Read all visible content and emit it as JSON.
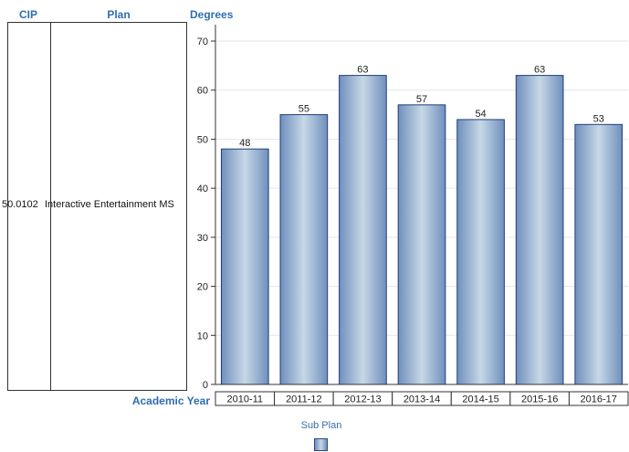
{
  "headers": {
    "cip": "CIP",
    "plan": "Plan",
    "degrees": "Degrees"
  },
  "row": {
    "cip": "50.0102",
    "plan": "Interactive Entertainment MS"
  },
  "chart_data": {
    "type": "bar",
    "categories": [
      "2010-11",
      "2011-12",
      "2012-13",
      "2013-14",
      "2014-15",
      "2015-16",
      "2016-17"
    ],
    "values": [
      48,
      55,
      63,
      57,
      54,
      63,
      53
    ],
    "xlabel": "Academic Year",
    "ylabel": "Degrees",
    "ylim": [
      0,
      70
    ],
    "yticks": [
      0,
      10,
      20,
      30,
      40,
      50,
      60,
      70
    ],
    "legend": {
      "title": "Sub Plan",
      "placement": "bottom"
    },
    "colors": {
      "bar_edge": "#1f3f7a",
      "bar_mid": "#c7d8e6",
      "bar_side": "#6f8fbd",
      "label": "#2e6db2"
    }
  }
}
